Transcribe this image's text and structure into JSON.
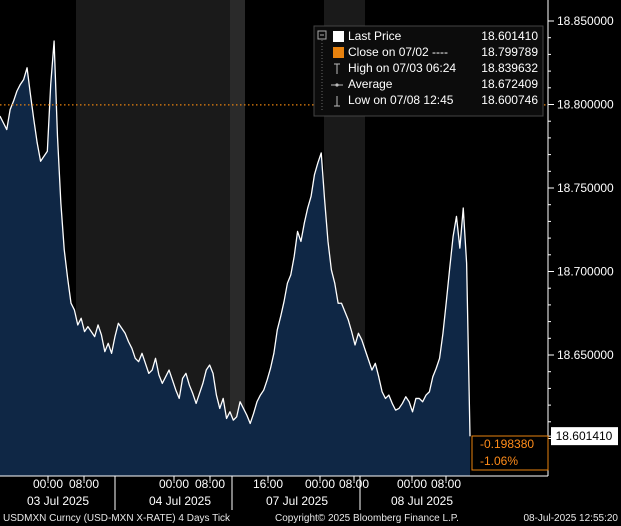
{
  "chart_data": {
    "type": "area",
    "instrument": "USDMXN Curncy",
    "ylim": [
      18.59,
      18.86
    ],
    "y_ticks": [
      18.85,
      18.8,
      18.75,
      18.7,
      18.65
    ],
    "y_tick_labels": [
      "18.850000",
      "18.800000",
      "18.750000",
      "18.700000",
      "18.650000"
    ],
    "last_value": 18.60141,
    "last_value_label": "18.601410",
    "reference_line": {
      "value": 18.799789,
      "style": "dotted",
      "color": "#e8820e"
    },
    "time_labels": [
      {
        "hour_labels": [
          "00:00",
          "08:00"
        ],
        "date": "03 Jul 2025"
      },
      {
        "hour_labels": [
          "00:00",
          "08:00"
        ],
        "date": "04 Jul 2025"
      },
      {
        "hour_labels": [
          "16:00",
          "00:00",
          "08:00"
        ],
        "date": "07 Jul 2025"
      },
      {
        "hour_labels": [
          "00:00",
          "08:00"
        ],
        "date": "08 Jul 2025"
      }
    ],
    "series": [
      {
        "name": "Last Price",
        "color": "#ffffff",
        "fill": "#0f2745",
        "x": [
          0,
          1,
          2,
          3,
          4,
          5,
          6,
          7,
          8,
          9,
          10,
          11,
          12,
          13,
          14,
          15,
          16,
          17,
          18,
          19,
          20,
          21,
          22,
          23,
          24,
          25,
          26,
          27,
          28,
          29,
          30,
          31,
          32,
          33,
          34,
          35,
          36,
          37,
          38,
          39,
          40,
          41,
          42,
          43,
          44,
          45,
          46,
          47,
          48,
          49,
          50,
          51,
          52,
          53,
          54,
          55,
          56,
          57,
          58,
          59,
          60,
          61,
          62,
          63,
          64,
          65,
          66,
          67,
          68,
          69,
          70,
          71,
          72,
          73,
          74,
          75,
          76,
          77,
          78,
          79,
          80,
          81,
          82,
          83,
          84,
          85,
          86,
          87,
          88,
          89,
          90,
          91,
          92,
          93,
          94,
          95,
          96,
          97,
          98,
          99,
          100,
          101,
          102,
          103,
          104,
          105,
          106,
          107,
          108,
          109,
          110,
          111,
          112,
          113,
          114,
          115,
          116,
          117,
          118,
          119,
          120,
          121,
          122,
          123,
          124,
          125,
          126,
          127,
          128,
          129,
          130,
          131,
          132,
          133,
          134,
          135,
          136,
          137,
          138,
          139
        ],
        "values": [
          18.793,
          18.789,
          18.785,
          18.797,
          18.802,
          18.808,
          18.812,
          18.815,
          18.822,
          18.806,
          18.791,
          18.777,
          18.766,
          18.769,
          18.772,
          18.812,
          18.838,
          18.781,
          18.741,
          18.713,
          18.696,
          18.681,
          18.677,
          18.668,
          18.672,
          18.664,
          18.667,
          18.664,
          18.661,
          18.668,
          18.662,
          18.652,
          18.657,
          18.651,
          18.661,
          18.669,
          18.666,
          18.663,
          18.658,
          18.654,
          18.648,
          18.646,
          18.651,
          18.645,
          18.639,
          18.641,
          18.648,
          18.638,
          18.633,
          18.637,
          18.641,
          18.635,
          18.629,
          18.624,
          18.636,
          18.639,
          18.632,
          18.627,
          18.621,
          18.627,
          18.633,
          18.641,
          18.644,
          18.639,
          18.626,
          18.618,
          18.624,
          18.612,
          18.616,
          18.611,
          18.613,
          18.622,
          18.618,
          18.614,
          18.609,
          18.615,
          18.622,
          18.626,
          18.629,
          18.635,
          18.642,
          18.651,
          18.665,
          18.673,
          18.682,
          18.693,
          18.698,
          18.709,
          18.724,
          18.718,
          18.729,
          18.738,
          18.745,
          18.758,
          18.765,
          18.771,
          18.743,
          18.718,
          18.701,
          18.693,
          18.681,
          18.681,
          18.676,
          18.671,
          18.664,
          18.656,
          18.663,
          18.659,
          18.653,
          18.647,
          18.641,
          18.645,
          18.637,
          18.628,
          18.624,
          18.626,
          18.621,
          18.617,
          18.618,
          18.621,
          18.625,
          18.622,
          18.616,
          18.624,
          18.624,
          18.622,
          18.626,
          18.628,
          18.637,
          18.642,
          18.648,
          18.663,
          18.682,
          18.702,
          18.721,
          18.733,
          18.714,
          18.738,
          18.705,
          18.6014
        ]
      }
    ],
    "legend": [
      {
        "marker": "white-square-icon",
        "color": "#ffffff",
        "label": "Last Price",
        "value": "18.601410"
      },
      {
        "marker": "orange-square-icon",
        "color": "#e8820e",
        "label": "Close on 07/02 ----",
        "value": "18.799789"
      },
      {
        "marker": "high-marker-icon",
        "color": "#bbbbbb",
        "label": "High on 07/03 06:24",
        "value": "18.839632"
      },
      {
        "marker": "average-marker-icon",
        "color": "#bbbbbb",
        "label": "Average",
        "value": "18.672409"
      },
      {
        "marker": "low-marker-icon",
        "color": "#bbbbbb",
        "label": "Low on 07/08 12:45",
        "value": "18.600746"
      }
    ],
    "change": {
      "absolute": "-0.198380",
      "percent": "-1.06%"
    },
    "grid": false,
    "legend_placement": "top-right"
  },
  "footer": {
    "left": "USDMXN Curncy (USD-MXN X-RATE) 4 Days  Tick",
    "center": "Copyright© 2025 Bloomberg Finance L.P.",
    "right": "08-Jul-2025 12:55:20"
  },
  "colors": {
    "background": "#000000",
    "session_shade": "#1a1a1a",
    "area_fill": "#0f2745",
    "line": "#ffffff",
    "accent": "#e8820e"
  }
}
